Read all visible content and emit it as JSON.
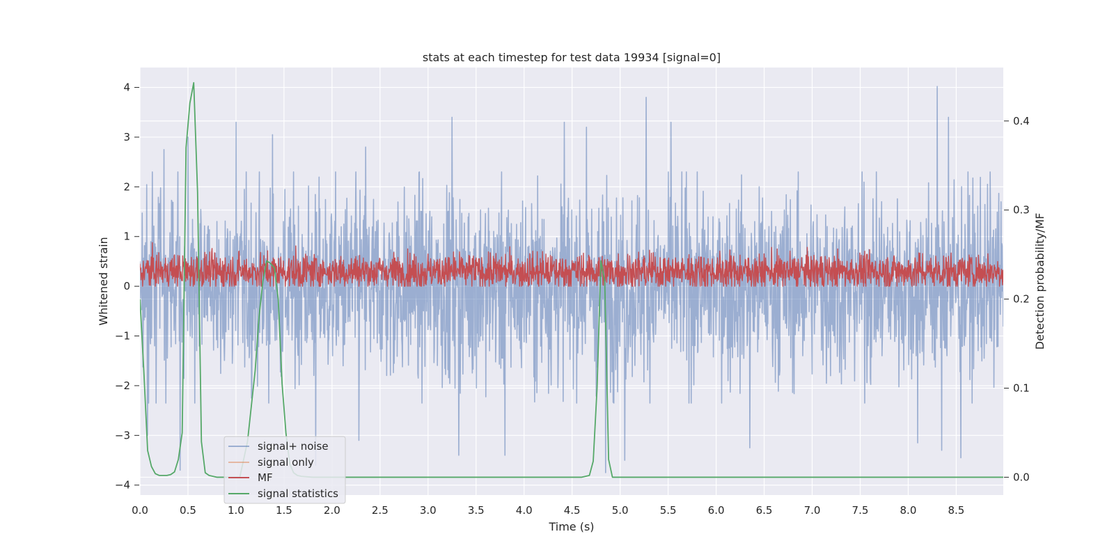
{
  "chart_data": {
    "type": "line",
    "title": "stats at each timestep for test data 19934 [signal=0]",
    "xlabel": "Time (s)",
    "ylabel": "Whitened strain",
    "ylabel_right": "Detection probability/MF",
    "xlim": [
      0.0,
      8.99
    ],
    "ylim": [
      -4.2,
      4.4
    ],
    "ylim_right": [
      -0.02,
      0.46
    ],
    "x_ticks": [
      "0.0",
      "0.5",
      "1.0",
      "1.5",
      "2.0",
      "2.5",
      "3.0",
      "3.5",
      "4.0",
      "4.5",
      "5.0",
      "5.5",
      "6.0",
      "6.5",
      "7.0",
      "7.5",
      "8.0",
      "8.5"
    ],
    "y_ticks": [
      "4",
      "3",
      "2",
      "1",
      "0",
      "−1",
      "−2",
      "−3",
      "−4"
    ],
    "y_ticks_right": [
      "0.4",
      "0.3",
      "0.2",
      "0.1",
      "0.0"
    ],
    "grid": true,
    "legend_position": "lower-left",
    "series": [
      {
        "name": "signal+ noise",
        "axis": "left",
        "color": "#4c72b0",
        "opacity": 0.5,
        "kind": "noise",
        "n_points": 2300,
        "std": 1.0,
        "peaks": [
          {
            "x": 0.25,
            "y": 2.75
          },
          {
            "x": 0.5,
            "y": 3.0
          },
          {
            "x": 1.0,
            "y": 3.3
          },
          {
            "x": 1.38,
            "y": 3.05
          },
          {
            "x": 2.35,
            "y": 2.8
          },
          {
            "x": 3.25,
            "y": 3.4
          },
          {
            "x": 4.42,
            "y": 3.3
          },
          {
            "x": 4.65,
            "y": 3.2
          },
          {
            "x": 5.27,
            "y": 3.8
          },
          {
            "x": 5.53,
            "y": 3.3
          },
          {
            "x": 8.3,
            "y": 4.02
          },
          {
            "x": 8.42,
            "y": 3.4
          },
          {
            "x": 0.08,
            "y": -3.0
          },
          {
            "x": 0.42,
            "y": -3.7
          },
          {
            "x": 1.83,
            "y": -3.6
          },
          {
            "x": 2.28,
            "y": -3.1
          },
          {
            "x": 3.32,
            "y": -3.4
          },
          {
            "x": 3.8,
            "y": -3.4
          },
          {
            "x": 4.85,
            "y": -3.75
          },
          {
            "x": 5.05,
            "y": -3.5
          },
          {
            "x": 6.35,
            "y": -3.25
          },
          {
            "x": 8.1,
            "y": -3.15
          },
          {
            "x": 8.35,
            "y": -3.3
          },
          {
            "x": 8.55,
            "y": -3.45
          }
        ]
      },
      {
        "name": "signal only",
        "axis": "left",
        "color": "#dd8452",
        "opacity": 0.5,
        "values": []
      },
      {
        "name": "MF",
        "axis": "left",
        "color": "#c44e52",
        "kind": "matched-filter",
        "n_points": 2300,
        "mean": 0.3,
        "std": 0.18,
        "min": 0.0,
        "max": 1.0
      },
      {
        "name": "signal statistics",
        "axis": "right",
        "color": "#55a868",
        "x": [
          0.0,
          0.04,
          0.08,
          0.12,
          0.16,
          0.2,
          0.24,
          0.28,
          0.32,
          0.36,
          0.4,
          0.44,
          0.48,
          0.52,
          0.56,
          0.6,
          0.64,
          0.68,
          0.72,
          0.76,
          0.8,
          0.88,
          0.96,
          1.04,
          1.12,
          1.2,
          1.24,
          1.28,
          1.32,
          1.36,
          1.4,
          1.44,
          1.48,
          1.52,
          1.56,
          1.6,
          1.64,
          1.68,
          1.8,
          4.6,
          4.68,
          4.72,
          4.76,
          4.8,
          4.84,
          4.88,
          4.92,
          5.0,
          8.99
        ],
        "values": [
          0.2,
          0.12,
          0.03,
          0.012,
          0.004,
          0.002,
          0.002,
          0.002,
          0.003,
          0.006,
          0.02,
          0.05,
          0.37,
          0.42,
          0.443,
          0.32,
          0.04,
          0.005,
          0.002,
          0.001,
          0.0,
          0.0,
          0.0,
          0.0,
          0.04,
          0.12,
          0.18,
          0.22,
          0.243,
          0.24,
          0.235,
          0.2,
          0.105,
          0.05,
          0.015,
          0.005,
          0.002,
          0.001,
          0.0,
          0.0,
          0.002,
          0.018,
          0.1,
          0.243,
          0.22,
          0.02,
          0.0,
          0.0,
          0.0
        ]
      }
    ]
  }
}
